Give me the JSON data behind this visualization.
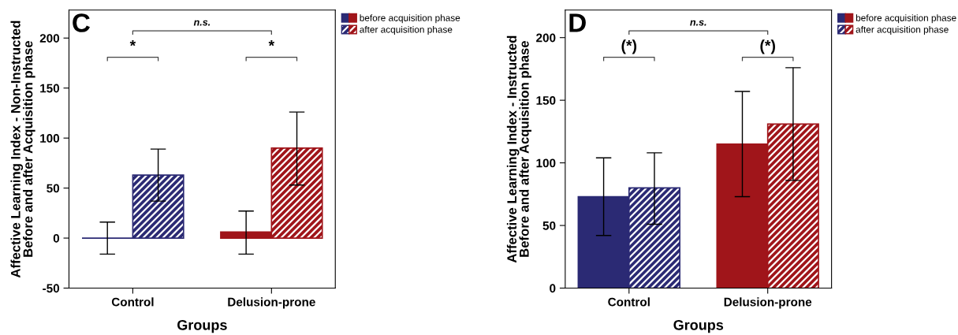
{
  "chart_data": [
    {
      "type": "bar",
      "title": "C",
      "xlabel": "Groups",
      "ylabel": "Affective Learning Index - Non-Instructed\nBefore and after Acquisition phase",
      "categories": [
        "Control",
        "Delusion-prone"
      ],
      "series": [
        {
          "name": "before acquisition phase",
          "colors": [
            "#2b2a74",
            "#a0151a"
          ],
          "values": [
            0,
            6
          ],
          "errors": [
            [
              -16,
              16
            ],
            [
              -16,
              27
            ]
          ]
        },
        {
          "name": "after acquisition phase",
          "colors": [
            "#2b2a74",
            "#a0151a"
          ],
          "values": [
            63,
            90
          ],
          "errors": [
            [
              37,
              89
            ],
            [
              53,
              126
            ]
          ]
        }
      ],
      "ylim": [
        -50,
        228
      ],
      "yticks": [
        -50,
        0,
        50,
        100,
        150,
        200
      ],
      "grid": false,
      "legend": "top right",
      "annotations": [
        "*",
        "*",
        "n.s."
      ]
    },
    {
      "type": "bar",
      "title": "D",
      "xlabel": "Groups",
      "ylabel": "Affective Learning Index - Instructed\nBefore and after Acquisition phase",
      "categories": [
        "Control",
        "Delusion-prone"
      ],
      "series": [
        {
          "name": "before acquisition phase",
          "colors": [
            "#2b2a74",
            "#a0151a"
          ],
          "values": [
            73,
            115
          ],
          "errors": [
            [
              42,
              104
            ],
            [
              73,
              157
            ]
          ]
        },
        {
          "name": "after acquisition phase",
          "colors": [
            "#2b2a74",
            "#a0151a"
          ],
          "values": [
            80,
            131
          ],
          "errors": [
            [
              51,
              108
            ],
            [
              86,
              176
            ]
          ]
        }
      ],
      "ylim": [
        0,
        222
      ],
      "yticks": [
        0,
        50,
        100,
        150,
        200
      ],
      "grid": false,
      "legend": "top right",
      "annotations": [
        "(*)",
        "(*)",
        "n.s."
      ]
    }
  ]
}
